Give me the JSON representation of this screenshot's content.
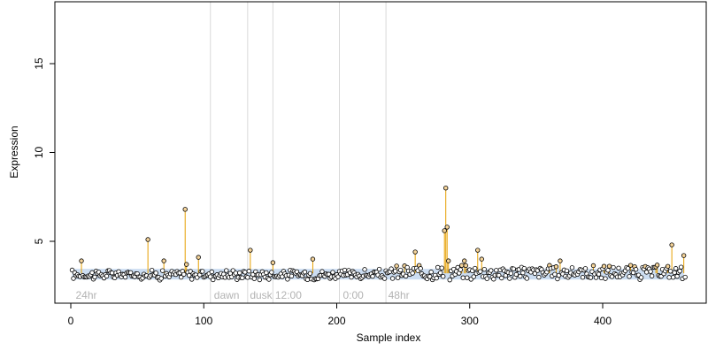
{
  "chart_data": {
    "type": "scatter",
    "title": "",
    "xlabel": "Sample index",
    "ylabel": "Expression",
    "xlim": [
      0,
      462
    ],
    "ylim": [
      2.0,
      18.5
    ],
    "x_ticks": [
      0,
      100,
      200,
      300,
      400
    ],
    "y_ticks": [
      5,
      10,
      15
    ],
    "grid": false,
    "baseline": 3.2,
    "vlines": [
      105,
      133,
      152,
      202,
      237
    ],
    "region_labels": [
      {
        "x": 3,
        "label": "24hr"
      },
      {
        "x": 107,
        "label": "dawn"
      },
      {
        "x": 134,
        "label": "dusk"
      },
      {
        "x": 153,
        "label": "12:00"
      },
      {
        "x": 204,
        "label": "0:00"
      },
      {
        "x": 238,
        "label": "48hr"
      }
    ],
    "n_samples": 462,
    "highlight_points": [
      {
        "x": 8,
        "y": 3.9
      },
      {
        "x": 58,
        "y": 5.1
      },
      {
        "x": 70,
        "y": 3.9
      },
      {
        "x": 86,
        "y": 6.8
      },
      {
        "x": 87,
        "y": 3.7
      },
      {
        "x": 96,
        "y": 4.1
      },
      {
        "x": 135,
        "y": 4.5
      },
      {
        "x": 152,
        "y": 3.8
      },
      {
        "x": 182,
        "y": 4.0
      },
      {
        "x": 259,
        "y": 4.4
      },
      {
        "x": 281,
        "y": 5.6
      },
      {
        "x": 282,
        "y": 8.0
      },
      {
        "x": 283,
        "y": 5.8
      },
      {
        "x": 284,
        "y": 3.9
      },
      {
        "x": 296,
        "y": 3.9
      },
      {
        "x": 306,
        "y": 4.5
      },
      {
        "x": 309,
        "y": 4.0
      },
      {
        "x": 368,
        "y": 3.9
      },
      {
        "x": 452,
        "y": 4.8
      },
      {
        "x": 461,
        "y": 4.2
      }
    ],
    "colors": {
      "point_fill": "#ffffff",
      "point_stroke": "#000000",
      "spike": "#e69f00",
      "highlight_fill": "#f5d49a",
      "band_fill": "#8fb3e0",
      "vline": "#d9d9d9",
      "region_label": "#b3b3b3"
    }
  }
}
